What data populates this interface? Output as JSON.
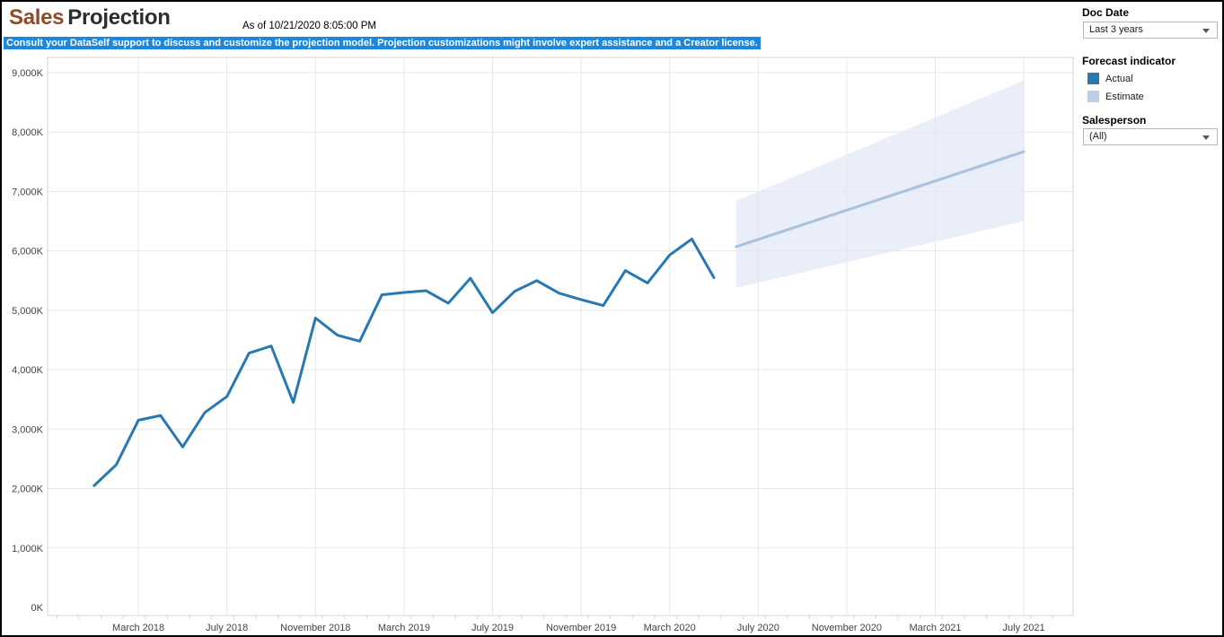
{
  "header": {
    "title_primary": "Sales",
    "title_secondary": "Projection",
    "timestamp": "As of 10/21/2020 8:05:00 PM",
    "notice": "Consult your DataSelf support to discuss and customize the projection model. Projection customizations might involve expert assistance and a Creator license."
  },
  "sidebar": {
    "doc_date": {
      "label": "Doc Date",
      "value": "Last 3 years"
    },
    "forecast_indicator": {
      "label": "Forecast indicator",
      "items": [
        {
          "label": "Actual",
          "color": "#2878b2"
        },
        {
          "label": "Estimate",
          "color": "#bccee8"
        }
      ]
    },
    "salesperson": {
      "label": "Salesperson",
      "value": "(All)"
    }
  },
  "chart_data": {
    "type": "line",
    "title": "Sales Projection",
    "xlabel": "",
    "ylabel": "",
    "ylim": [
      0,
      9000
    ],
    "grid": true,
    "legend_position": "right",
    "legend_title": "Forecast indicator",
    "y_ticks": [
      {
        "value": 0,
        "label": "0K"
      },
      {
        "value": 1000,
        "label": "1,000K"
      },
      {
        "value": 2000,
        "label": "2,000K"
      },
      {
        "value": 3000,
        "label": "3,000K"
      },
      {
        "value": 4000,
        "label": "4,000K"
      },
      {
        "value": 5000,
        "label": "5,000K"
      },
      {
        "value": 6000,
        "label": "6,000K"
      },
      {
        "value": 7000,
        "label": "7,000K"
      },
      {
        "value": 8000,
        "label": "8,000K"
      },
      {
        "value": 9000,
        "label": "9,000K"
      }
    ],
    "x_ticks": [
      {
        "month": "2018-03",
        "label": "March 2018"
      },
      {
        "month": "2018-07",
        "label": "July 2018"
      },
      {
        "month": "2018-11",
        "label": "November 2018"
      },
      {
        "month": "2019-03",
        "label": "March 2019"
      },
      {
        "month": "2019-07",
        "label": "July 2019"
      },
      {
        "month": "2019-11",
        "label": "November 2019"
      },
      {
        "month": "2020-03",
        "label": "March 2020"
      },
      {
        "month": "2020-07",
        "label": "July 2020"
      },
      {
        "month": "2020-11",
        "label": "November 2020"
      },
      {
        "month": "2021-03",
        "label": "March 2021"
      },
      {
        "month": "2021-07",
        "label": "July 2021"
      }
    ],
    "series": [
      {
        "name": "Actual",
        "kind": "line",
        "color": "#2878b2",
        "months": [
          "2018-01",
          "2018-02",
          "2018-03",
          "2018-04",
          "2018-05",
          "2018-06",
          "2018-07",
          "2018-08",
          "2018-09",
          "2018-10",
          "2018-11",
          "2018-12",
          "2019-01",
          "2019-02",
          "2019-03",
          "2019-04",
          "2019-05",
          "2019-06",
          "2019-07",
          "2019-08",
          "2019-09",
          "2019-10",
          "2019-11",
          "2019-12",
          "2020-01",
          "2020-02",
          "2020-03",
          "2020-04",
          "2020-05"
        ],
        "values_K": [
          2050,
          2400,
          3150,
          3230,
          2700,
          3280,
          3550,
          4280,
          4400,
          3450,
          4870,
          4580,
          4480,
          5260,
          5300,
          5330,
          5120,
          5540,
          4960,
          5320,
          5500,
          5290,
          5180,
          5080,
          5670,
          5460,
          5930,
          6200,
          5550
        ]
      },
      {
        "name": "Estimate",
        "kind": "band-with-center-line",
        "line_color": "#a7c1e3",
        "band_color": "#e9eef8",
        "months": [
          "2020-06",
          "2021-07"
        ],
        "center_K": [
          6070,
          7670
        ],
        "upper_K": [
          6840,
          8870
        ],
        "lower_K": [
          5380,
          6500
        ]
      }
    ],
    "colors": {
      "grid": "#e7e7e7",
      "axis": "#d6d6d6",
      "tick_text": "#434343"
    }
  }
}
